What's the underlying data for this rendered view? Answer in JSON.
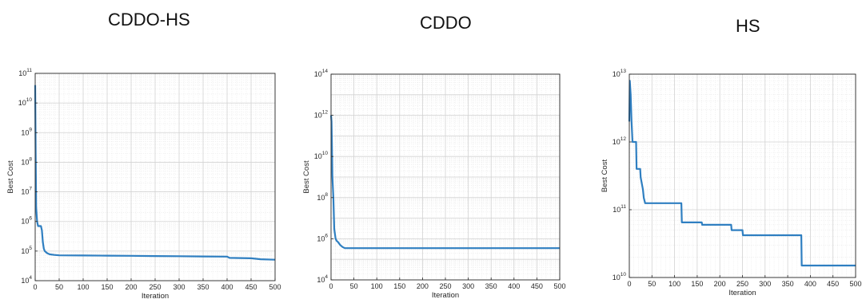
{
  "chart_data": [
    {
      "type": "line",
      "title": "CDDO-HS",
      "xlabel": "Iteration",
      "ylabel": "Best Cost",
      "xlim": [
        0,
        500
      ],
      "ylim_exponent": [
        4,
        11
      ],
      "yscale": "log",
      "grid": true,
      "xticks": [
        "0",
        "50",
        "100",
        "150",
        "200",
        "250",
        "300",
        "350",
        "400",
        "450",
        "500"
      ],
      "ytick_exponents": [
        4,
        5,
        6,
        7,
        8,
        9,
        10,
        11
      ],
      "series": [
        {
          "color": "#2f7fc1",
          "x": [
            0,
            1,
            2,
            4,
            6,
            8,
            10,
            12,
            14,
            16,
            18,
            20,
            25,
            30,
            40,
            50,
            100,
            150,
            200,
            250,
            300,
            350,
            400,
            405,
            450,
            470,
            500
          ],
          "y": [
            40000000000.0,
            200000000.0,
            3000000.0,
            1000000.0,
            700000.0,
            700000.0,
            700000.0,
            700000.0,
            500000.0,
            200000.0,
            120000.0,
            100000.0,
            85000.0,
            78000.0,
            74000.0,
            72000.0,
            71000.0,
            70000.0,
            69000.0,
            68000.0,
            67000.0,
            66000.0,
            65000.0,
            59000.0,
            57000.0,
            53000.0,
            51000.0
          ]
        }
      ]
    },
    {
      "type": "line",
      "title": "CDDO",
      "xlabel": "Iteration",
      "ylabel": "Best Cost",
      "xlim": [
        0,
        500
      ],
      "ylim_exponent": [
        4,
        14
      ],
      "yscale": "log",
      "grid": true,
      "xticks": [
        "0",
        "50",
        "100",
        "150",
        "200",
        "250",
        "300",
        "350",
        "400",
        "450",
        "500"
      ],
      "ytick_exponents": [
        4,
        6,
        8,
        10,
        12,
        14
      ],
      "series": [
        {
          "color": "#2f7fc1",
          "x": [
            0,
            1,
            2,
            3,
            5,
            7,
            10,
            12,
            15,
            20,
            25,
            30,
            40,
            100,
            200,
            300,
            400,
            500
          ],
          "y": [
            1000000000000.0,
            500000000000.0,
            30000000000.0,
            1000000000.0,
            100000000.0,
            3000000.0,
            1000000.0,
            800000.0,
            700000.0,
            500000.0,
            400000.0,
            350000.0,
            350000.0,
            350000.0,
            350000.0,
            350000.0,
            350000.0,
            350000.0
          ]
        }
      ]
    },
    {
      "type": "line",
      "title": "HS",
      "xlabel": "Iteration",
      "ylabel": "Best Cost",
      "xlim": [
        0,
        500
      ],
      "ylim_exponent": [
        10,
        13
      ],
      "yscale": "log",
      "grid": true,
      "xticks": [
        "0",
        "50",
        "100",
        "150",
        "200",
        "250",
        "300",
        "350",
        "400",
        "450",
        "500"
      ],
      "ytick_exponents": [
        10,
        11,
        12,
        13
      ],
      "series": [
        {
          "color": "#2f7fc1",
          "x": [
            0,
            1,
            3,
            5,
            7,
            8,
            15,
            16,
            24,
            25,
            30,
            32,
            35,
            36,
            115,
            116,
            160,
            161,
            225,
            226,
            250,
            251,
            380,
            381,
            500
          ],
          "y": [
            2000000000000.0,
            8000000000000.0,
            5000000000000.0,
            2000000000000.0,
            1000000000000.0,
            1000000000000.0,
            1000000000000.0,
            400000000000.0,
            400000000000.0,
            300000000000.0,
            200000000000.0,
            150000000000.0,
            125000000000.0,
            125000000000.0,
            125000000000.0,
            65000000000.0,
            65000000000.0,
            60000000000.0,
            60000000000.0,
            50000000000.0,
            50000000000.0,
            42000000000.0,
            42000000000.0,
            15000000000.0,
            15000000000.0
          ]
        }
      ]
    }
  ]
}
